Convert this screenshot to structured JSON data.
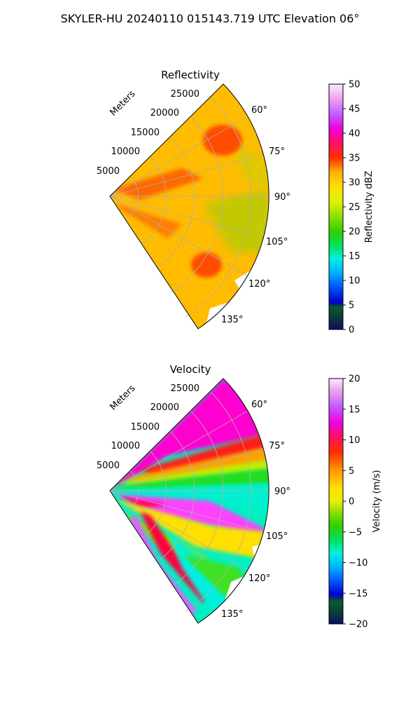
{
  "suptitle": "SKYLER-HU  20240110  015143.719 UTC Elevation 06°",
  "chart_data": [
    {
      "type": "heatmap",
      "projection": "polar-sector",
      "title": "Reflectivity",
      "range_axis_label": "Meters",
      "range_tick_labels": [
        "5000",
        "10000",
        "15000",
        "20000",
        "25000"
      ],
      "range_ticks": [
        5000,
        10000,
        15000,
        20000,
        25000
      ],
      "range_max": 28000,
      "azimuth_range_deg": [
        45,
        135
      ],
      "azimuth_tick_labels": [
        "60°",
        "75°",
        "90°",
        "105°",
        "120°",
        "135°"
      ],
      "azimuth_ticks_deg": [
        60,
        75,
        90,
        105,
        120,
        135
      ],
      "grid": true,
      "colorbar": {
        "label": "Reflectivity dBZ",
        "min": 0,
        "max": 50,
        "tick_values": [
          0,
          5,
          10,
          15,
          20,
          25,
          30,
          35,
          40,
          45,
          50
        ],
        "tick_labels": [
          "0",
          "5",
          "10",
          "15",
          "20",
          "25",
          "30",
          "35",
          "40",
          "45",
          "50"
        ]
      }
    },
    {
      "type": "heatmap",
      "projection": "polar-sector",
      "title": "Velocity",
      "range_axis_label": "Meters",
      "range_tick_labels": [
        "5000",
        "10000",
        "15000",
        "20000",
        "25000"
      ],
      "range_ticks": [
        5000,
        10000,
        15000,
        20000,
        25000
      ],
      "range_max": 28000,
      "azimuth_range_deg": [
        45,
        135
      ],
      "azimuth_tick_labels": [
        "60°",
        "75°",
        "90°",
        "105°",
        "120°",
        "135°"
      ],
      "azimuth_ticks_deg": [
        60,
        75,
        90,
        105,
        120,
        135
      ],
      "grid": true,
      "colorbar": {
        "label": "Velocity (m/s)",
        "min": -20,
        "max": 20,
        "tick_values": [
          -20,
          -15,
          -10,
          -5,
          0,
          5,
          10,
          15,
          20
        ],
        "tick_labels": [
          "−20",
          "−15",
          "−10",
          "−5",
          "0",
          "5",
          "10",
          "15",
          "20"
        ]
      }
    }
  ]
}
